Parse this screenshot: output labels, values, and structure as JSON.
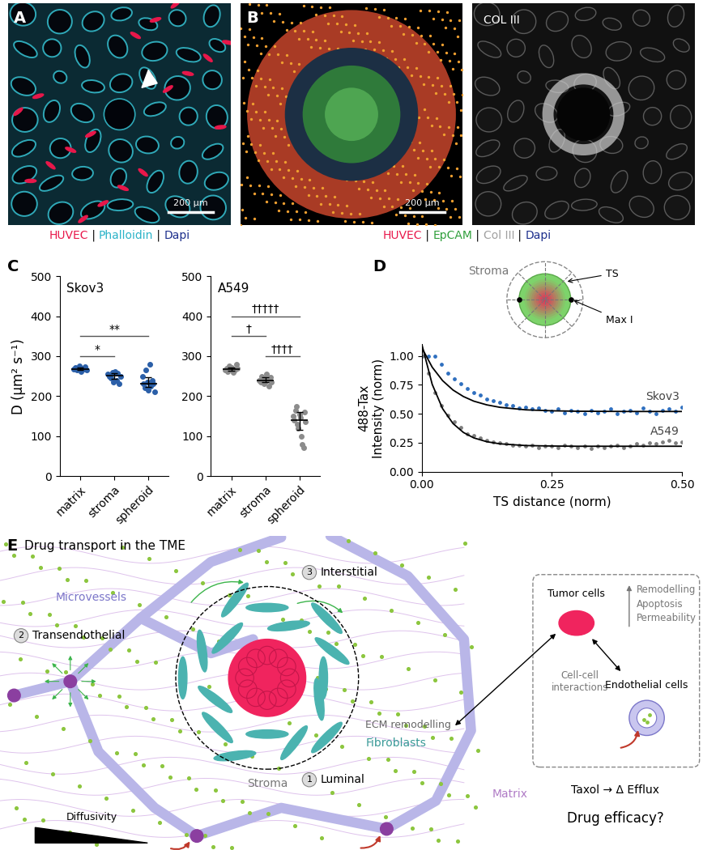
{
  "panel_labels": [
    "A",
    "B",
    "C",
    "D",
    "E"
  ],
  "images": {
    "A": {
      "scale_bar": "200 µm",
      "separator": " | ",
      "channels": [
        {
          "text": "HUVEC",
          "color": "#e8174a"
        },
        {
          "text": "Phalloidin",
          "color": "#2bb3c8"
        },
        {
          "text": "Dapi",
          "color": "#1c2e8c"
        }
      ]
    },
    "B": {
      "scale_bar": "200 µm",
      "separator": " | ",
      "second_image_title": "COL III",
      "channels": [
        {
          "text": "HUVEC",
          "color": "#e8174a"
        },
        {
          "text": "EpCAM",
          "color": "#2e9e3a"
        },
        {
          "text": "Col III",
          "color": "#a0a0a0"
        },
        {
          "text": "Dapi",
          "color": "#1c2e8c"
        }
      ]
    }
  },
  "chart_data": [
    {
      "type": "strip",
      "title": "Skov3",
      "ylabel": "D (µm² s⁻¹)",
      "color": "#2b5fa8",
      "categories": [
        "matrix",
        "stroma",
        "spheroid"
      ],
      "values": [
        [
          268,
          272,
          265,
          270,
          275,
          262,
          270,
          268,
          273,
          266
        ],
        [
          255,
          250,
          245,
          260,
          235,
          262,
          240,
          258,
          230,
          250
        ],
        [
          250,
          230,
          220,
          265,
          235,
          215,
          280,
          225,
          240,
          232,
          210
        ]
      ],
      "median": [
        268,
        251,
        232
      ],
      "error_low": [
        265,
        243,
        222
      ],
      "error_high": [
        272,
        258,
        248
      ],
      "comparisons": [
        {
          "groups": [
            "matrix",
            "stroma"
          ],
          "label": "*"
        },
        {
          "groups": [
            "matrix",
            "spheroid"
          ],
          "label": "**"
        }
      ],
      "ylim": [
        0,
        500
      ],
      "yticks": [
        0,
        100,
        200,
        300,
        400,
        500
      ]
    },
    {
      "type": "strip",
      "title": "A549",
      "color": "#8c8c8c",
      "categories": [
        "matrix",
        "stroma",
        "spheroid"
      ],
      "values": [
        [
          265,
          270,
          262,
          275,
          268,
          272,
          260,
          266,
          280,
          270
        ],
        [
          240,
          235,
          250,
          245,
          230,
          238,
          255,
          242,
          225,
          248,
          236
        ],
        [
          150,
          140,
          165,
          175,
          130,
          120,
          155,
          145,
          100,
          80,
          70,
          160,
          135
        ]
      ],
      "median": [
        268,
        240,
        140
      ],
      "error_low": [
        264,
        235,
        115
      ],
      "error_high": [
        272,
        248,
        160
      ],
      "comparisons": [
        {
          "groups": [
            "stroma",
            "spheroid"
          ],
          "label": "††††"
        },
        {
          "groups": [
            "matrix",
            "stroma"
          ],
          "label": "†"
        },
        {
          "groups": [
            "matrix",
            "spheroid"
          ],
          "label": "†††††"
        }
      ],
      "ylim": [
        0,
        500
      ],
      "yticks": [
        0,
        100,
        200,
        300,
        400,
        500
      ]
    },
    {
      "type": "scatter",
      "xlabel": "TS distance (norm)",
      "ylabel": "488-Tax\nIntensity (norm)",
      "xlim": [
        0,
        0.5
      ],
      "ylim": [
        0,
        1.1
      ],
      "xticks": [
        {
          "value": 0,
          "label": "0.00"
        },
        0.25,
        {
          "value": 0.5,
          "label": "0.50"
        }
      ],
      "yticks": [
        {
          "value": 0,
          "label": "0.00"
        },
        0.25,
        {
          "value": 0.5,
          "label": "0.50"
        },
        0.75,
        {
          "value": 1,
          "label": "1.00"
        }
      ],
      "x": [
        0,
        0.0125,
        0.025,
        0.0375,
        0.05,
        0.0625,
        0.075,
        0.0875,
        0.1,
        0.1125,
        0.125,
        0.1375,
        0.15,
        0.1625,
        0.175,
        0.1875,
        0.2,
        0.2125,
        0.225,
        0.2375,
        0.25,
        0.2625,
        0.275,
        0.2875,
        0.3,
        0.3125,
        0.325,
        0.3375,
        0.35,
        0.3625,
        0.375,
        0.3875,
        0.4,
        0.4125,
        0.425,
        0.4375,
        0.45,
        0.4625,
        0.475,
        0.4875,
        0.5
      ],
      "series": [
        {
          "name": "Skov3",
          "color": "#2e6fbf",
          "values": [
            1.0,
            1.0,
            1.0,
            0.93,
            0.85,
            0.8,
            0.76,
            0.72,
            0.68,
            0.66,
            0.63,
            0.61,
            0.6,
            0.58,
            0.57,
            0.55,
            0.56,
            0.54,
            0.55,
            0.53,
            0.52,
            0.54,
            0.51,
            0.53,
            0.52,
            0.5,
            0.53,
            0.51,
            0.52,
            0.54,
            0.5,
            0.52,
            0.53,
            0.51,
            0.55,
            0.52,
            0.5,
            0.53,
            0.54,
            0.52,
            0.56
          ],
          "fit_x": [
            0,
            0.02,
            0.04,
            0.06,
            0.08,
            0.1,
            0.125,
            0.15,
            0.2,
            0.25,
            0.3,
            0.4,
            0.5
          ],
          "fit": [
            1.07,
            0.902,
            0.786,
            0.705,
            0.649,
            0.609,
            0.577,
            0.556,
            0.534,
            0.526,
            0.522,
            0.52,
            0.52
          ]
        },
        {
          "name": "A549",
          "color": "#7f7f7f",
          "values": [
            1.0,
            0.85,
            0.68,
            0.57,
            0.49,
            0.43,
            0.38,
            0.33,
            0.31,
            0.29,
            0.27,
            0.26,
            0.25,
            0.24,
            0.23,
            0.23,
            0.22,
            0.23,
            0.21,
            0.22,
            0.22,
            0.21,
            0.23,
            0.22,
            0.21,
            0.22,
            0.2,
            0.22,
            0.21,
            0.22,
            0.23,
            0.21,
            0.22,
            0.24,
            0.23,
            0.25,
            0.24,
            0.26,
            0.27,
            0.25,
            0.26
          ],
          "fit_x": [
            0,
            0.02,
            0.04,
            0.06,
            0.08,
            0.1,
            0.125,
            0.15,
            0.2,
            0.25,
            0.3,
            0.4,
            0.5
          ],
          "fit": [
            1.1,
            0.754,
            0.544,
            0.416,
            0.339,
            0.292,
            0.259,
            0.241,
            0.226,
            0.222,
            0.22,
            0.22,
            0.22
          ]
        }
      ],
      "inset": {
        "region": "Stroma",
        "boundary": "TS",
        "maximum": "Max I"
      }
    }
  ],
  "diagram": {
    "title": "Drug transport in the TME",
    "labels": {
      "microvessels": "Microvessels",
      "stroma": "Stroma",
      "ecm": "ECM remodelling",
      "fibroblasts": "Fibroblasts",
      "matrix": "Matrix",
      "diffusivity": "Diffusivity"
    },
    "routes": [
      {
        "number": "1",
        "label": "Luminal"
      },
      {
        "number": "2",
        "label": "Transendothelial"
      },
      {
        "number": "3",
        "label": "Interstitial"
      }
    ],
    "interaction_box": {
      "tumor": "Tumor cells",
      "interactions": "Cell-cell\ninteractions",
      "endothelial": "Endothelial cells",
      "effects": [
        "Remodelling",
        "Apoptosis",
        "Permeability"
      ],
      "taxol": "Taxol → Δ Efflux",
      "question": "Drug efficacy?"
    }
  }
}
